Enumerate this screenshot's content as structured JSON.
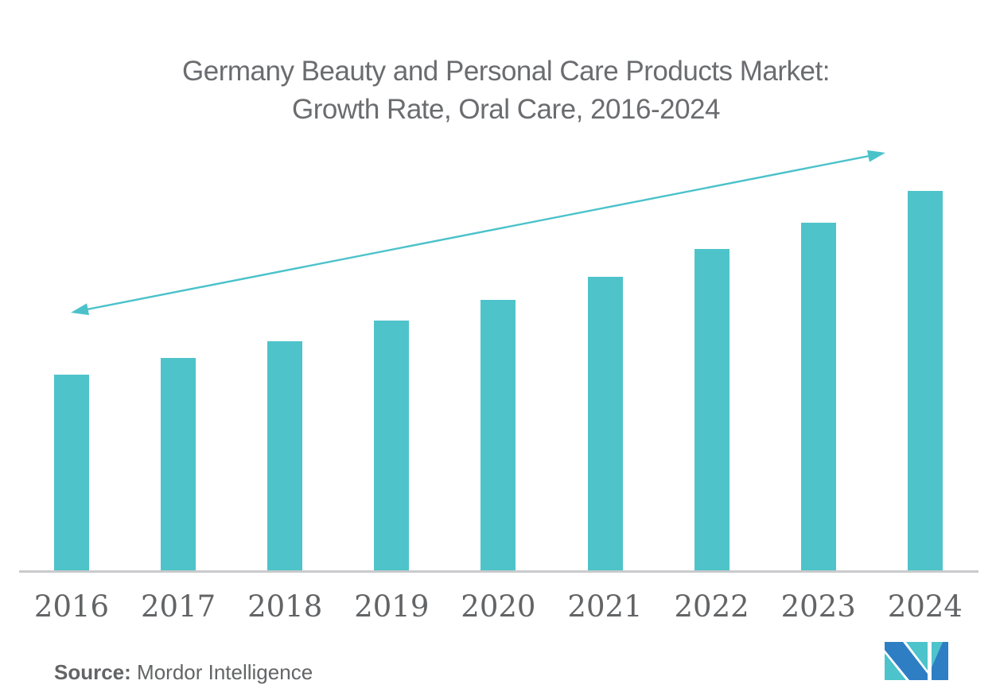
{
  "title": {
    "line1": "Germany Beauty and Personal Care Products Market:",
    "line2": "Growth Rate, Oral Care, 2016-2024"
  },
  "source": {
    "label": "Source:",
    "name": " Mordor Intelligence"
  },
  "logo": {
    "name": "mordor-intelligence-logo"
  },
  "colors": {
    "bar": "#4EC3CA",
    "trend_arrow": "#4BC2CA",
    "axis_line": "#C9CACC",
    "title_text": "#6B6C6F",
    "axis_label_text": "#636466",
    "source_text": "#636466",
    "logo_blue": "#2E7EC4",
    "logo_teal": "#4DC3CB"
  },
  "chart_data": {
    "type": "bar",
    "title": "Germany Beauty and Personal Care Products Market: Growth Rate, Oral Care, 2016-2024",
    "categories": [
      "2016",
      "2017",
      "2018",
      "2019",
      "2020",
      "2021",
      "2022",
      "2023",
      "2024"
    ],
    "values": [
      51.6,
      56.0,
      60.4,
      65.8,
      71.3,
      77.4,
      84.7,
      91.6,
      100
    ],
    "values_unit": "relative growth-rate index estimated from bar heights (y-axis unlabeled; 2024 = 100)",
    "xlabel": "",
    "ylabel": "",
    "ylim": [
      0,
      105
    ],
    "y_axis_visible": false,
    "gridlines": false,
    "legend": false,
    "bar_color": "#4EC3CA",
    "annotations": [
      {
        "type": "trend-arrow",
        "style": "straight double-headed arrow",
        "color": "#4BC2CA",
        "description": "upward trend arrow rising from above the 2016 bar to above the 2024 bar"
      }
    ]
  }
}
